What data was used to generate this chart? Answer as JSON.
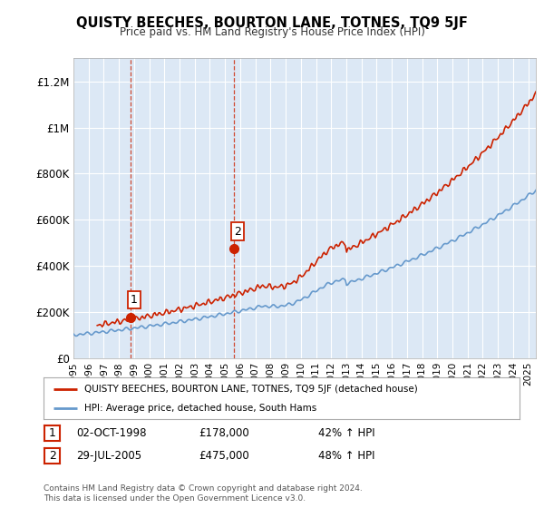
{
  "title": "QUISTY BEECHES, BOURTON LANE, TOTNES, TQ9 5JF",
  "subtitle": "Price paid vs. HM Land Registry's House Price Index (HPI)",
  "ylabel_ticks": [
    "£0",
    "£200K",
    "£400K",
    "£600K",
    "£800K",
    "£1M",
    "£1.2M"
  ],
  "ylim": [
    0,
    1300000
  ],
  "xlim_start": 1995.0,
  "xlim_end": 2025.5,
  "background_color": "#ffffff",
  "plot_bg_color": "#dce8f5",
  "grid_color": "#ffffff",
  "hpi_color": "#6699cc",
  "price_color": "#cc2200",
  "marker_color": "#cc2200",
  "vline_color": "#cc2200",
  "sale1_x": 1998.75,
  "sale1_y": 178000,
  "sale1_label": "1",
  "sale1_date": "02-OCT-1998",
  "sale1_price": "£178,000",
  "sale1_hpi": "42% ↑ HPI",
  "sale2_x": 2005.58,
  "sale2_y": 475000,
  "sale2_label": "2",
  "sale2_date": "29-JUL-2005",
  "sale2_price": "£475,000",
  "sale2_hpi": "48% ↑ HPI",
  "legend_house": "QUISTY BEECHES, BOURTON LANE, TOTNES, TQ9 5JF (detached house)",
  "legend_hpi": "HPI: Average price, detached house, South Hams",
  "footnote1": "Contains HM Land Registry data © Crown copyright and database right 2024.",
  "footnote2": "This data is licensed under the Open Government Licence v3.0.",
  "x_tick_years": [
    1995,
    1996,
    1997,
    1998,
    1999,
    2000,
    2001,
    2002,
    2003,
    2004,
    2005,
    2006,
    2007,
    2008,
    2009,
    2010,
    2011,
    2012,
    2013,
    2014,
    2015,
    2016,
    2017,
    2018,
    2019,
    2020,
    2021,
    2022,
    2023,
    2024,
    2025
  ]
}
